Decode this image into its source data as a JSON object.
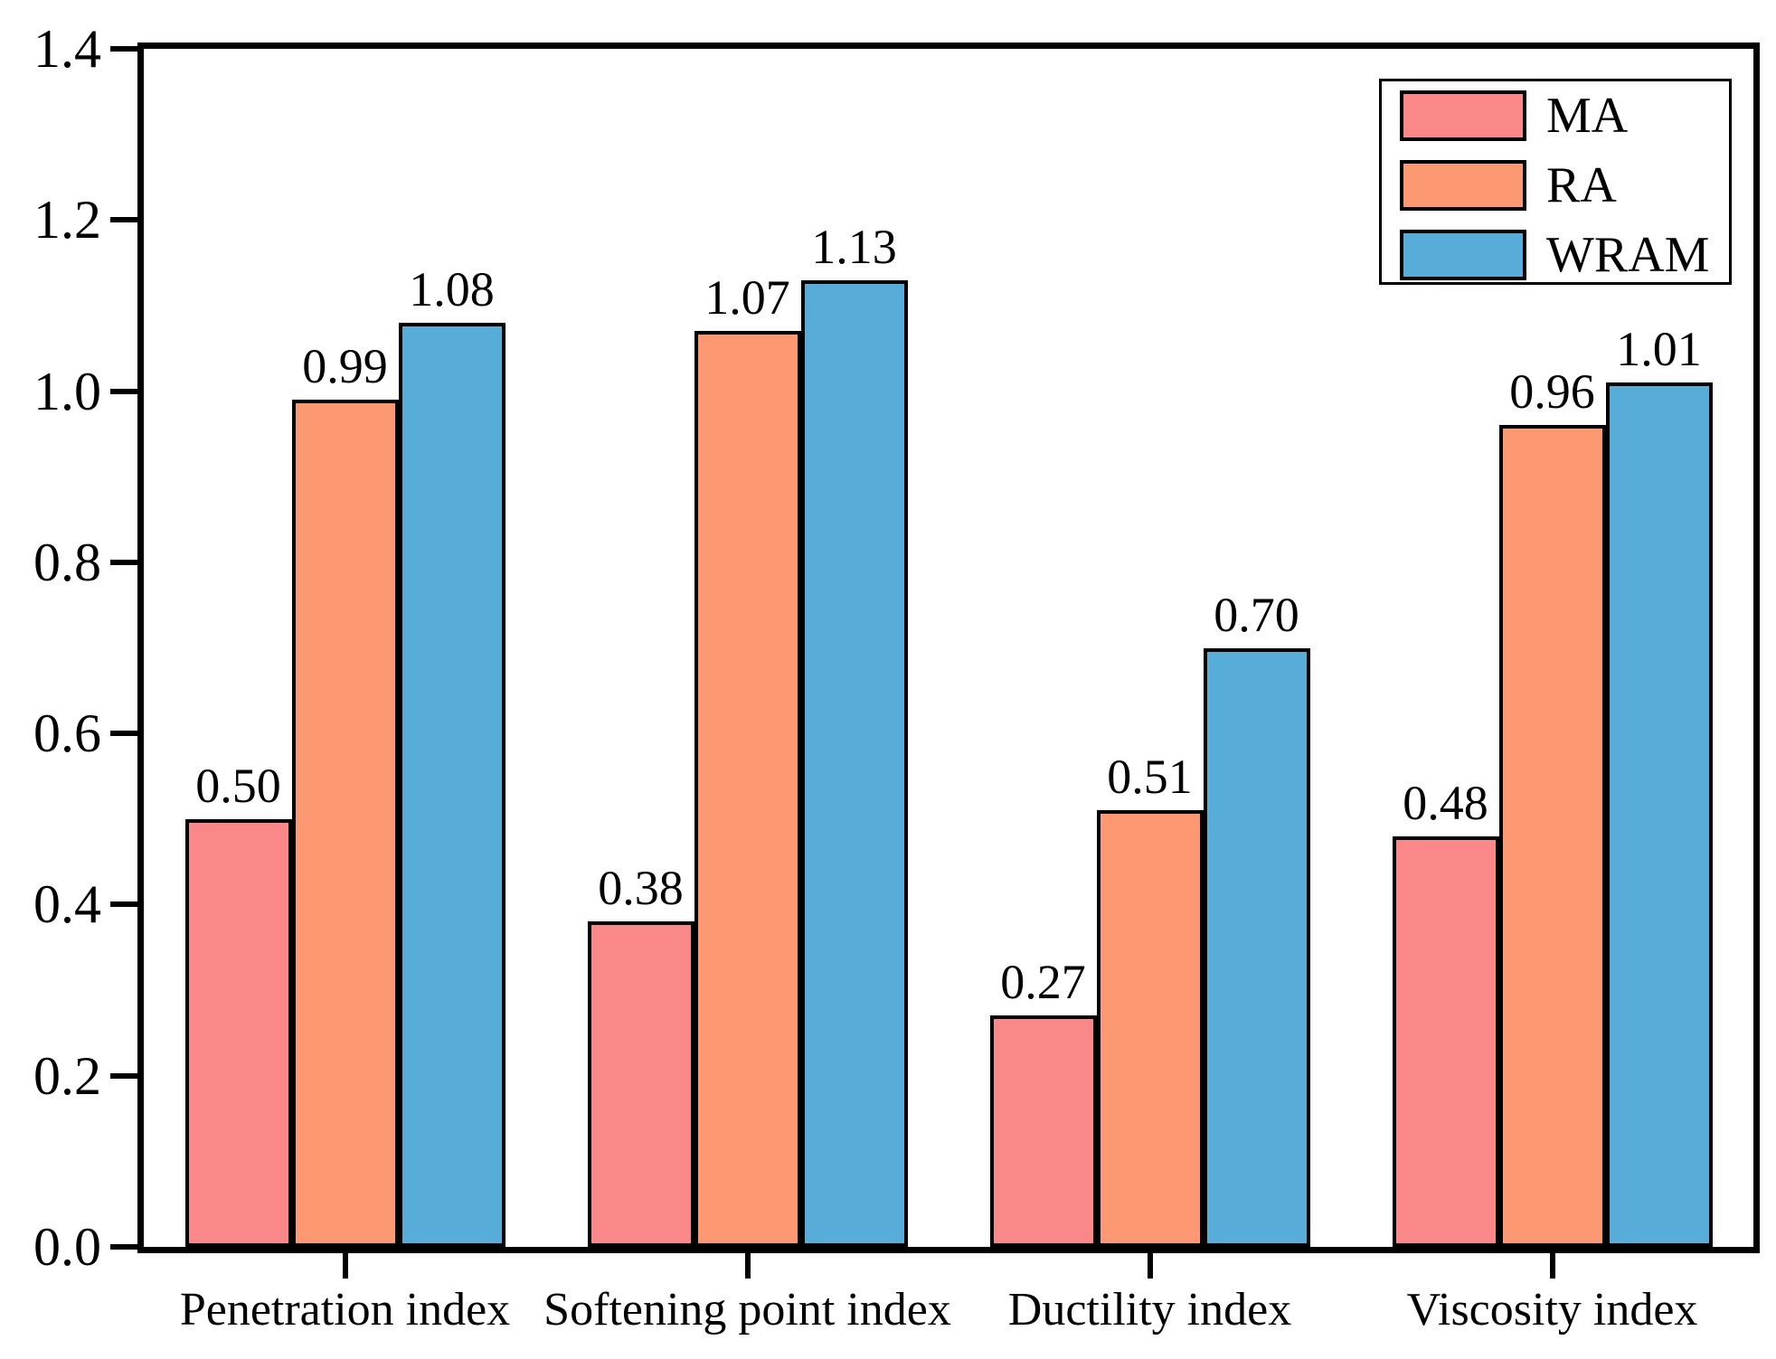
{
  "chart_data": {
    "type": "bar",
    "title": "",
    "xlabel": "",
    "ylabel": "",
    "categories": [
      "Penetration index",
      "Softening point index",
      "Ductility index",
      "Viscosity index"
    ],
    "series": [
      {
        "name": "MA",
        "color": "#FB8888",
        "values": [
          0.5,
          0.38,
          0.27,
          0.48
        ],
        "labels": [
          "0.50",
          "0.38",
          "0.27",
          "0.48"
        ]
      },
      {
        "name": "RA",
        "color": "#FC9872",
        "values": [
          0.99,
          1.07,
          0.51,
          0.96
        ],
        "labels": [
          "0.99",
          "1.07",
          "0.51",
          "0.96"
        ]
      },
      {
        "name": "WRAM",
        "color": "#57ACD8",
        "values": [
          1.08,
          1.13,
          0.7,
          1.01
        ],
        "labels": [
          "1.08",
          "1.13",
          "0.70",
          "1.01"
        ]
      }
    ],
    "ylim": [
      0,
      1.4
    ],
    "ytick_step": 0.2,
    "ytick_labels": [
      "0.0",
      "0.2",
      "0.4",
      "0.6",
      "0.8",
      "1.0",
      "1.2",
      "1.4"
    ],
    "grid": false,
    "legend_position": "top-right",
    "bar_outline_color": "#000000",
    "axis_color": "#000000",
    "background_color": "#ffffff"
  }
}
